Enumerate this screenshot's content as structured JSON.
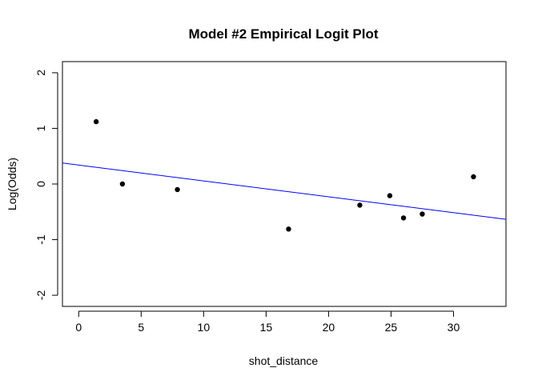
{
  "chart_data": {
    "type": "scatter",
    "title": "Model #2 Empirical Logit Plot",
    "xlabel": "shot_distance",
    "ylabel": "Log(Odds)",
    "xlim": [
      -1.3,
      34.2
    ],
    "ylim": [
      -2.2,
      2.2
    ],
    "xticks": [
      0,
      5,
      10,
      15,
      20,
      25,
      30
    ],
    "yticks": [
      -2,
      -1,
      0,
      1,
      2
    ],
    "grid": false,
    "points": [
      {
        "x": 1.4,
        "y": 1.12
      },
      {
        "x": 3.5,
        "y": 0.0
      },
      {
        "x": 7.9,
        "y": -0.1
      },
      {
        "x": 16.8,
        "y": -0.81
      },
      {
        "x": 22.5,
        "y": -0.38
      },
      {
        "x": 24.9,
        "y": -0.21
      },
      {
        "x": 26.0,
        "y": -0.61
      },
      {
        "x": 27.5,
        "y": -0.54
      },
      {
        "x": 31.6,
        "y": 0.13
      }
    ],
    "fit_line": {
      "intercept": 0.34,
      "slope": -0.0285,
      "color": "#0000ff"
    },
    "point_color": "#000000"
  }
}
